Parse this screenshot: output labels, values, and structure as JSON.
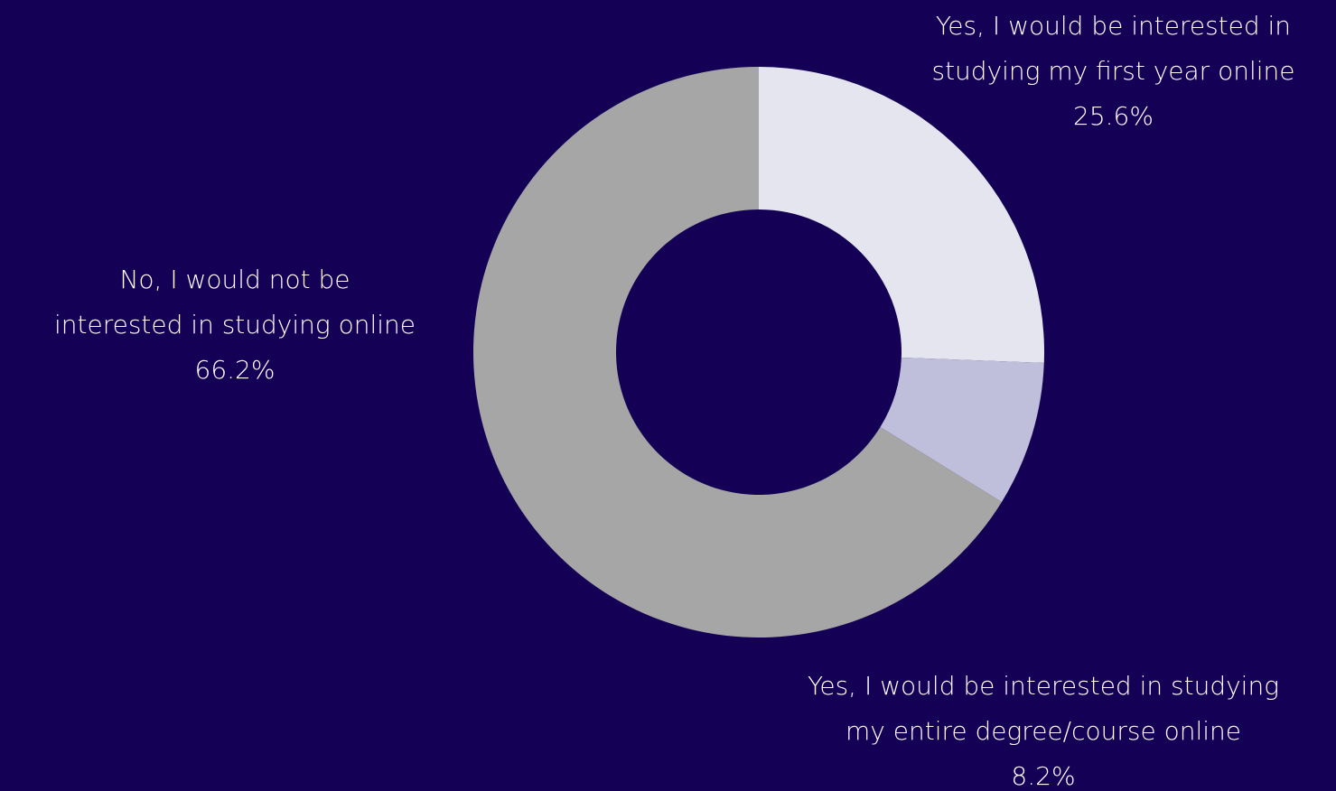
{
  "colors": {
    "background": "#140055",
    "label_text": "#ffffff"
  },
  "chart_data": {
    "type": "pie",
    "donut": true,
    "start_angle_deg": 0,
    "direction": "clockwise",
    "slices": [
      {
        "label_line1": "Yes, I would be interested in",
        "label_line2": "studying my first year online",
        "value_label": "25.6%",
        "value": 25.6,
        "color": "#e5e5f0"
      },
      {
        "label_line1": "Yes, I would be interested in studying",
        "label_line2": "my entire degree/course online",
        "value_label": "8.2%",
        "value": 8.2,
        "color": "#bfbedb"
      },
      {
        "label_line1": "No, I would not be",
        "label_line2": "interested in studying online",
        "value_label": "66.2%",
        "value": 66.2,
        "color": "#a6a6a6"
      }
    ]
  }
}
